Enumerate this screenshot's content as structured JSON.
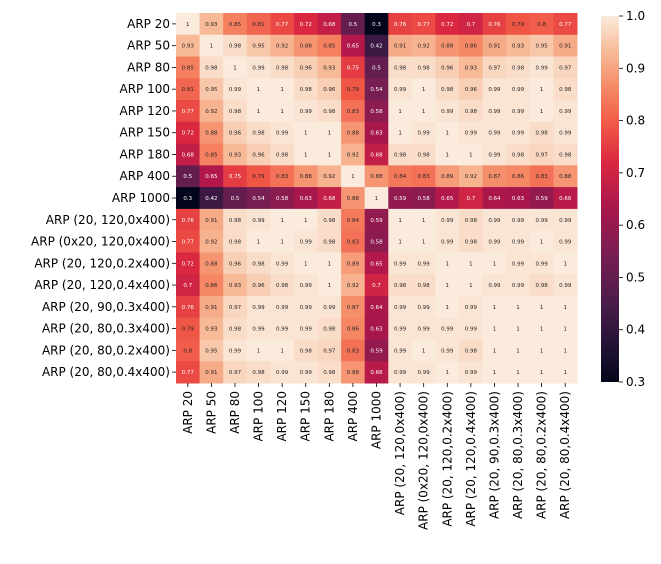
{
  "chart_data": {
    "type": "heatmap",
    "title": "",
    "xlabel": "",
    "ylabel": "",
    "colormap": "rocket",
    "vmin": 0.3,
    "vmax": 1.0,
    "colorbar_ticks": [
      "0.3",
      "0.4",
      "0.5",
      "0.6",
      "0.7",
      "0.8",
      "0.9",
      "1.0"
    ],
    "labels": [
      "ARP 20",
      "ARP 50",
      "ARP 80",
      "ARP 100",
      "ARP 120",
      "ARP 150",
      "ARP 180",
      "ARP 400",
      "ARP 1000",
      "ARP (20, 120,0x400)",
      "ARP (0x20, 120,0x400)",
      "ARP (20, 120,0.2x400)",
      "ARP (20, 120,0.4x400)",
      "ARP (20, 90,0.3x400)",
      "ARP (20, 80,0.3x400)",
      "ARP (20, 80,0.2x400)",
      "ARP (20, 80,0.4x400)"
    ],
    "matrix": [
      [
        1,
        0.93,
        0.85,
        0.81,
        0.77,
        0.72,
        0.68,
        0.5,
        0.3,
        0.76,
        0.77,
        0.72,
        0.7,
        0.76,
        0.79,
        0.8,
        0.77
      ],
      [
        0.93,
        1,
        0.98,
        0.95,
        0.92,
        0.88,
        0.85,
        0.65,
        0.42,
        0.91,
        0.92,
        0.88,
        0.86,
        0.91,
        0.93,
        0.95,
        0.91
      ],
      [
        0.85,
        0.98,
        1,
        0.99,
        0.98,
        0.96,
        0.93,
        0.75,
        0.5,
        0.98,
        0.98,
        0.96,
        0.93,
        0.97,
        0.98,
        0.99,
        0.97
      ],
      [
        0.81,
        0.95,
        0.99,
        1,
        1,
        0.98,
        0.96,
        0.79,
        0.54,
        0.99,
        1,
        0.98,
        0.96,
        0.99,
        0.99,
        1,
        0.98
      ],
      [
        0.77,
        0.92,
        0.98,
        1,
        1,
        0.99,
        0.98,
        0.83,
        0.58,
        1,
        1,
        0.99,
        0.98,
        0.99,
        0.99,
        1,
        0.99
      ],
      [
        0.72,
        0.88,
        0.96,
        0.98,
        0.99,
        1,
        1,
        0.88,
        0.63,
        1,
        0.99,
        1,
        0.99,
        0.99,
        0.99,
        0.98,
        0.99
      ],
      [
        0.68,
        0.85,
        0.93,
        0.96,
        0.98,
        1,
        1,
        0.92,
        0.68,
        0.98,
        0.98,
        1,
        1,
        0.99,
        0.98,
        0.97,
        0.98
      ],
      [
        0.5,
        0.65,
        0.75,
        0.79,
        0.83,
        0.88,
        0.92,
        1,
        0.88,
        0.84,
        0.83,
        0.89,
        0.92,
        0.87,
        0.86,
        0.83,
        0.88
      ],
      [
        0.3,
        0.42,
        0.5,
        0.54,
        0.58,
        0.63,
        0.68,
        0.88,
        1,
        0.59,
        0.58,
        0.65,
        0.7,
        0.64,
        0.63,
        0.59,
        0.66
      ],
      [
        0.76,
        0.91,
        0.98,
        0.99,
        1,
        1,
        0.98,
        0.84,
        0.59,
        1,
        1,
        0.99,
        0.98,
        0.99,
        0.99,
        0.99,
        0.99
      ],
      [
        0.77,
        0.92,
        0.98,
        1,
        1,
        0.99,
        0.98,
        0.83,
        0.58,
        1,
        1,
        0.99,
        0.98,
        0.99,
        0.99,
        1,
        0.99
      ],
      [
        0.72,
        0.88,
        0.96,
        0.98,
        0.99,
        1,
        1,
        0.89,
        0.65,
        0.99,
        0.99,
        1,
        1,
        1,
        0.99,
        0.99,
        1
      ],
      [
        0.7,
        0.86,
        0.93,
        0.96,
        0.98,
        0.99,
        1,
        0.92,
        0.7,
        0.98,
        0.98,
        1,
        1,
        0.99,
        0.99,
        0.98,
        0.99
      ],
      [
        0.76,
        0.91,
        0.97,
        0.99,
        0.99,
        0.99,
        0.99,
        0.87,
        0.64,
        0.99,
        0.99,
        1,
        0.99,
        1,
        1,
        1,
        1
      ],
      [
        0.79,
        0.93,
        0.98,
        0.99,
        0.99,
        0.99,
        0.98,
        0.86,
        0.63,
        0.99,
        0.99,
        0.99,
        0.99,
        1,
        1,
        1,
        1
      ],
      [
        0.8,
        0.95,
        0.99,
        1,
        1,
        0.98,
        0.97,
        0.83,
        0.59,
        0.99,
        1,
        0.99,
        0.98,
        1,
        1,
        1,
        1
      ],
      [
        0.77,
        0.91,
        0.97,
        0.98,
        0.99,
        0.99,
        0.98,
        0.88,
        0.66,
        0.99,
        0.99,
        1,
        0.99,
        1,
        1,
        1,
        1
      ]
    ]
  }
}
